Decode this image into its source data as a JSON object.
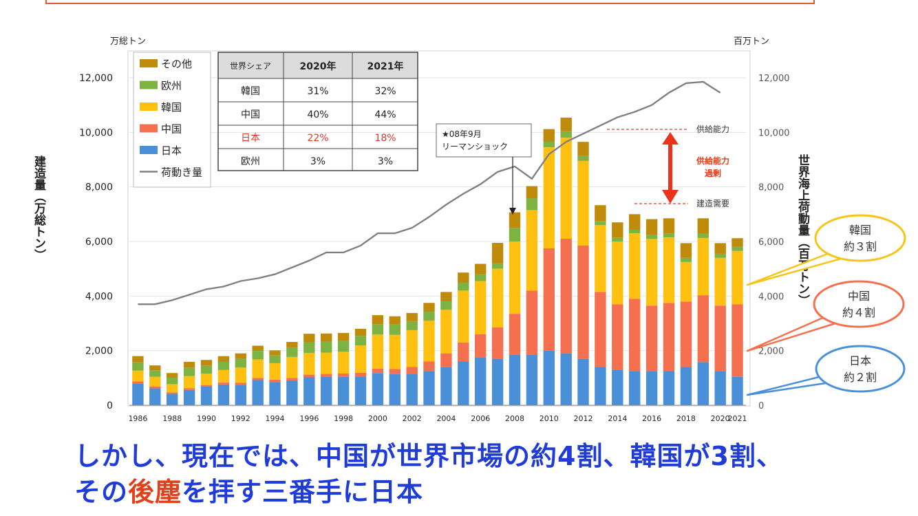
{
  "chart_data": {
    "type": "bar",
    "stacked": true,
    "left_axis_unit": "万総トン",
    "right_axis_unit": "百万トン",
    "ylabel_left": "建造量（万総トン）",
    "ylabel_right": "世界海上荷動量（百万トン）",
    "ylim": [
      0,
      12000
    ],
    "yticks": [
      "0",
      "2,000",
      "4,000",
      "6,000",
      "8,000",
      "10,000",
      "12,000"
    ],
    "x": [
      1986,
      1987,
      1988,
      1989,
      1990,
      1991,
      1992,
      1993,
      1994,
      1995,
      1996,
      1997,
      1998,
      1999,
      2000,
      2001,
      2002,
      2003,
      2004,
      2005,
      2006,
      2007,
      2008,
      2009,
      2010,
      2011,
      2012,
      2013,
      2014,
      2015,
      2016,
      2017,
      2018,
      2019,
      2020,
      2021
    ],
    "xtick_labels": [
      "1986",
      "1988",
      "1990",
      "1992",
      "1994",
      "1996",
      "1998",
      "2000",
      "2002",
      "2004",
      "2006",
      "2008",
      "2010",
      "2012",
      "2014",
      "2016",
      "2018",
      "2020",
      "2021"
    ],
    "series": [
      {
        "name": "日本",
        "color": "#4a90d9",
        "values": [
          800,
          620,
          420,
          560,
          680,
          760,
          750,
          920,
          850,
          910,
          1020,
          1040,
          1040,
          1050,
          1180,
          1150,
          1150,
          1250,
          1400,
          1600,
          1750,
          1700,
          1850,
          1850,
          2000,
          1900,
          1700,
          1400,
          1300,
          1250,
          1250,
          1250,
          1400,
          1580,
          1250,
          1050
        ]
      },
      {
        "name": "中国",
        "color": "#f4704f",
        "values": [
          70,
          60,
          50,
          60,
          60,
          70,
          70,
          80,
          90,
          90,
          100,
          110,
          120,
          140,
          160,
          180,
          250,
          350,
          500,
          700,
          850,
          1150,
          1500,
          2350,
          3750,
          4200,
          4150,
          2750,
          2400,
          2650,
          2400,
          2500,
          2400,
          2450,
          2400,
          2650
        ]
      },
      {
        "name": "韓国",
        "color": "#ffc010",
        "values": [
          400,
          360,
          300,
          450,
          420,
          460,
          560,
          680,
          600,
          770,
          800,
          780,
          800,
          1000,
          1250,
          1250,
          1350,
          1500,
          1600,
          1900,
          1950,
          2150,
          2650,
          2950,
          3700,
          3700,
          3100,
          2450,
          2300,
          2400,
          2450,
          2400,
          1450,
          2100,
          1750,
          1950
        ]
      },
      {
        "name": "欧州",
        "color": "#7cb342",
        "values": [
          300,
          240,
          250,
          300,
          300,
          310,
          320,
          310,
          290,
          350,
          400,
          400,
          400,
          350,
          380,
          380,
          330,
          340,
          320,
          300,
          250,
          200,
          500,
          430,
          220,
          240,
          180,
          150,
          150,
          140,
          150,
          150,
          150,
          150,
          150,
          150
        ]
      },
      {
        "name": "その他",
        "color": "#c08a0a",
        "values": [
          230,
          180,
          160,
          220,
          200,
          200,
          200,
          190,
          180,
          200,
          300,
          300,
          290,
          260,
          330,
          300,
          300,
          310,
          330,
          360,
          380,
          750,
          570,
          450,
          450,
          500,
          520,
          580,
          550,
          560,
          570,
          550,
          540,
          570,
          390,
          320
        ]
      }
    ],
    "line": {
      "name": "荷動き量",
      "color": "#808080",
      "values": [
        3700,
        3700,
        3850,
        4050,
        4250,
        4350,
        4550,
        4650,
        4800,
        5050,
        5300,
        5600,
        5600,
        5850,
        6300,
        6300,
        6500,
        6900,
        7350,
        7750,
        8100,
        8550,
        8750,
        8300,
        9200,
        9650,
        9950,
        10250,
        10550,
        10750,
        11000,
        11450,
        11800,
        11850,
        11450,
        null
      ]
    },
    "legend": {
      "position": "top-left",
      "items": [
        "その他",
        "欧州",
        "韓国",
        "中国",
        "日本",
        "荷動き量"
      ]
    },
    "share_table": {
      "header": [
        "世界シェア",
        "2020年",
        "2021年"
      ],
      "rows": [
        [
          "韓国",
          "31%",
          "32%"
        ],
        [
          "中国",
          "40%",
          "44%"
        ],
        [
          "日本",
          "22%",
          "18%"
        ],
        [
          "欧州",
          "3%",
          "3%"
        ]
      ]
    },
    "annotations": {
      "lehman_line1": "★08年9月",
      "lehman_line2": "リーマンショック",
      "supply_capacity": "供給能力",
      "build_demand": "建造需要",
      "overcapacity_line1": "供給能力",
      "overcapacity_line2": "過剰"
    },
    "callouts": [
      {
        "name": "korea",
        "line1": "韓国",
        "line2": "約３割",
        "color": "#f5c518"
      },
      {
        "name": "china",
        "line1": "中国",
        "line2": "約４割",
        "color": "#f4704f"
      },
      {
        "name": "japan",
        "line1": "日本",
        "line2": "約２割",
        "color": "#4a90d9"
      }
    ]
  },
  "caption": {
    "line1": "しかし、現在では、中国が世界市場の約4割、韓国が3割、",
    "line2_a": "その",
    "line2_b": "後塵",
    "line2_c": "を拝す三番手に日本"
  }
}
